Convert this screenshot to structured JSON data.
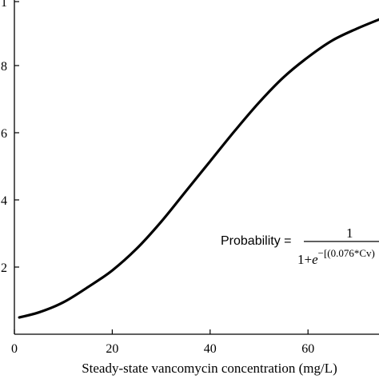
{
  "chart_data": {
    "type": "line",
    "xlabel": "Steady-state vancomycin concentration (mg/L)",
    "ylabel": "",
    "xlim": [
      0,
      75
    ],
    "ylim": [
      0,
      1
    ],
    "x_ticks": [
      "0",
      "20",
      "40",
      "60"
    ],
    "y_ticks": [
      "1",
      "8",
      "6",
      "4",
      "2"
    ],
    "grid": false,
    "series": [
      {
        "x": [
          1,
          5,
          10,
          15,
          20,
          25,
          30,
          35,
          40,
          45,
          50,
          55,
          60,
          65,
          70,
          75
        ],
        "y": [
          0.05,
          0.065,
          0.095,
          0.14,
          0.19,
          0.255,
          0.335,
          0.425,
          0.515,
          0.605,
          0.69,
          0.765,
          0.825,
          0.875,
          0.91,
          0.94
        ]
      }
    ],
    "annotation": {
      "lhs": "Probability =",
      "numerator": "1",
      "denominator_prefix": "1+",
      "denominator_base": "e",
      "exponent": "−[(0.076*Cv)"
    }
  }
}
